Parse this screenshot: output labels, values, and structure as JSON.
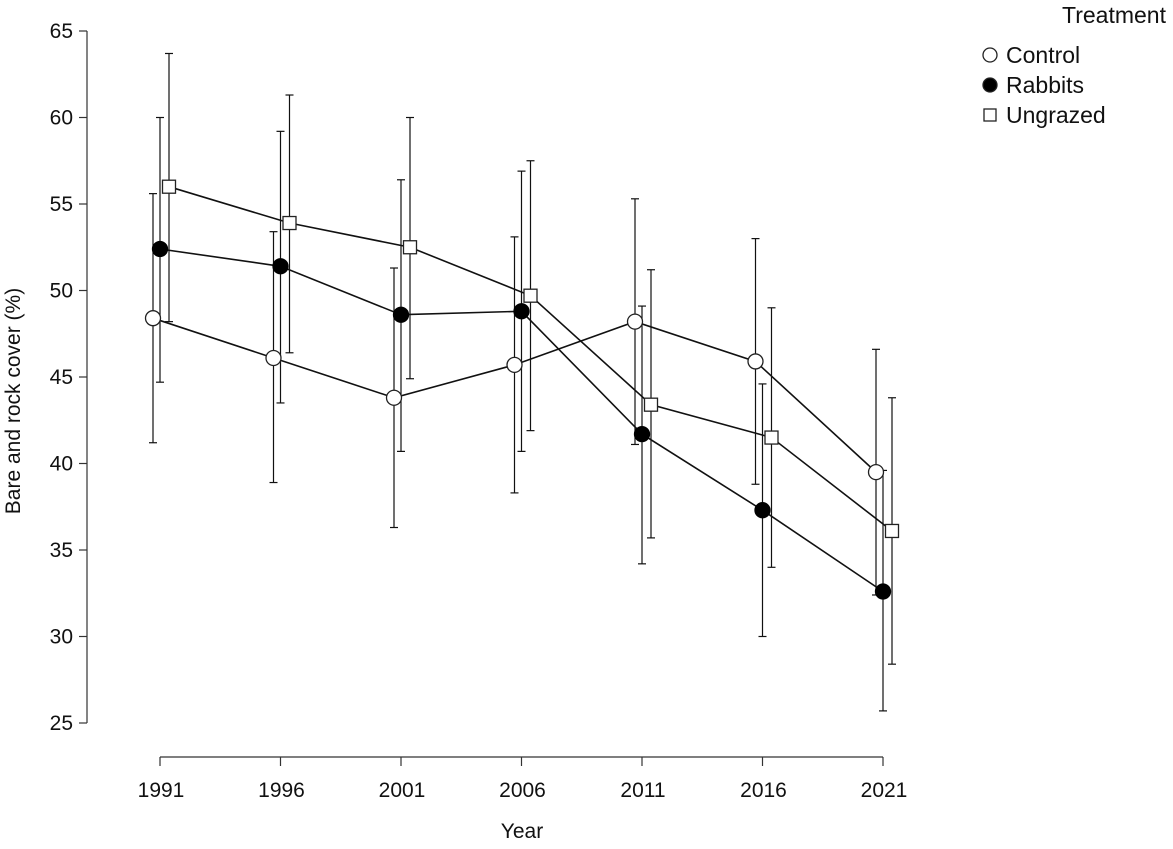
{
  "chart_data": {
    "type": "line",
    "title": "",
    "xlabel": "Year",
    "ylabel": "Bare and rock cover (%)",
    "categories": [
      "1991",
      "1996",
      "2001",
      "2006",
      "2011",
      "2016",
      "2021"
    ],
    "ylim": [
      25,
      65
    ],
    "yticks": [
      25,
      30,
      35,
      40,
      45,
      50,
      55,
      60,
      65
    ],
    "grid": false,
    "legend": {
      "title": "Treatment",
      "position": "top-right"
    },
    "series": [
      {
        "name": "Control",
        "marker": "open-circle",
        "values": [
          48.4,
          46.1,
          43.8,
          45.7,
          48.2,
          45.9,
          39.5
        ],
        "err_low": [
          41.2,
          38.9,
          36.3,
          38.3,
          41.1,
          38.8,
          32.4
        ],
        "err_high": [
          55.6,
          53.4,
          51.3,
          53.1,
          55.3,
          53.0,
          46.6
        ]
      },
      {
        "name": "Rabbits",
        "marker": "filled-circle",
        "values": [
          52.4,
          51.4,
          48.6,
          48.8,
          41.7,
          37.3,
          32.6
        ],
        "err_low": [
          44.7,
          43.5,
          40.7,
          40.7,
          34.2,
          30.0,
          25.7
        ],
        "err_high": [
          60.0,
          59.2,
          56.4,
          56.9,
          49.1,
          44.6,
          39.6
        ]
      },
      {
        "name": "Ungrazed",
        "marker": "open-square",
        "values": [
          56.0,
          53.9,
          52.5,
          49.7,
          43.4,
          41.5,
          36.1
        ],
        "err_low": [
          48.2,
          46.4,
          44.9,
          41.9,
          35.7,
          34.0,
          28.4
        ],
        "err_high": [
          63.7,
          61.3,
          60.0,
          57.5,
          51.2,
          49.0,
          43.8
        ]
      }
    ]
  }
}
